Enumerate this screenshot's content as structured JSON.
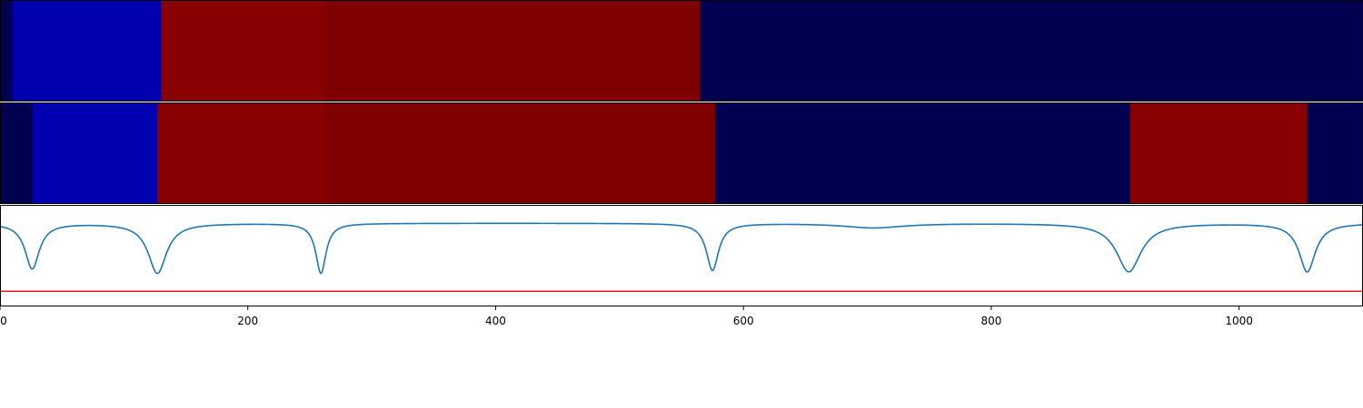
{
  "chart_data": [
    {
      "type": "heatmap",
      "xlim": [
        0,
        1100
      ],
      "segments": [
        {
          "start": 0,
          "end": 10,
          "color": "#000050"
        },
        {
          "start": 10,
          "end": 130,
          "color": "#0000b0"
        },
        {
          "start": 130,
          "end": 260,
          "color": "#880000"
        },
        {
          "start": 260,
          "end": 565,
          "color": "#7e0000"
        },
        {
          "start": 565,
          "end": 1100,
          "color": "#000050"
        }
      ]
    },
    {
      "type": "heatmap",
      "xlim": [
        0,
        1100
      ],
      "segments": [
        {
          "start": 0,
          "end": 26,
          "color": "#000050"
        },
        {
          "start": 26,
          "end": 127,
          "color": "#0000b0"
        },
        {
          "start": 127,
          "end": 262,
          "color": "#880000"
        },
        {
          "start": 262,
          "end": 577,
          "color": "#7e0000"
        },
        {
          "start": 577,
          "end": 912,
          "color": "#000050"
        },
        {
          "start": 912,
          "end": 1055,
          "color": "#880000"
        },
        {
          "start": 1055,
          "end": 1100,
          "color": "#000050"
        }
      ]
    },
    {
      "type": "line",
      "xlim": [
        0,
        1100
      ],
      "ylim": [
        -0.55,
        0.12
      ],
      "xticks": [
        0,
        200,
        400,
        600,
        800,
        1000
      ],
      "threshold": {
        "value": -0.45,
        "color": "#e31a1c"
      },
      "series": [
        {
          "color": "#1f77b4",
          "baseline": 0.0,
          "dips": [
            {
              "x": 26,
              "depth": -0.3,
              "width": 7
            },
            {
              "x": 127,
              "depth": -0.33,
              "width": 9
            },
            {
              "x": 259,
              "depth": -0.33,
              "width": 5
            },
            {
              "x": 575,
              "depth": -0.31,
              "width": 6
            },
            {
              "x": 705,
              "depth": -0.03,
              "width": 30
            },
            {
              "x": 911,
              "depth": -0.32,
              "width": 12
            },
            {
              "x": 1055,
              "depth": -0.32,
              "width": 8
            }
          ]
        }
      ]
    }
  ]
}
